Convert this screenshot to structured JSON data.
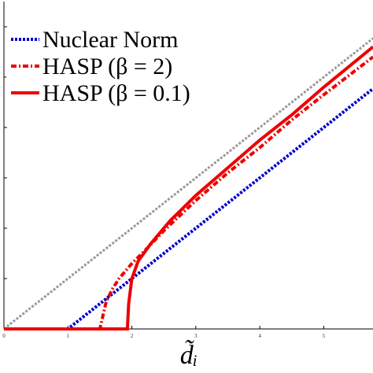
{
  "chart_data": {
    "type": "line",
    "xlabel": "d̃ᵢ",
    "xlim": [
      0,
      5.77
    ],
    "ylim": [
      0,
      6.5
    ],
    "xticks": [
      0,
      1,
      2,
      3,
      4,
      5
    ],
    "yticks": [
      0,
      1,
      2,
      3,
      4,
      5,
      6
    ],
    "legend": "upper left",
    "series": [
      {
        "name": null,
        "color": "#999999",
        "style": "dotted",
        "x": [
          0,
          5.77
        ],
        "values": [
          0,
          5.77
        ]
      },
      {
        "name": "Nuclear Norm",
        "color": "#0000cc",
        "style": "dotted",
        "x": [
          0,
          1,
          5.77
        ],
        "values": [
          0,
          0,
          4.77
        ]
      },
      {
        "name": "HASP (β = 2)",
        "color": "#ee0000",
        "style": "dashdot",
        "x": [
          0,
          1.5,
          1.6,
          1.7,
          1.8,
          2.0,
          2.2,
          2.5,
          3,
          3.5,
          4,
          4.5,
          5,
          5.77
        ],
        "values": [
          0,
          0,
          0.55,
          0.8,
          1.0,
          1.3,
          1.55,
          1.95,
          2.55,
          3.1,
          3.6,
          4.15,
          4.65,
          5.4
        ]
      },
      {
        "name": "HASP (β = 0.1)",
        "color": "#ee0000",
        "style": "solid",
        "x": [
          0,
          1.93,
          1.95,
          2.0,
          2.1,
          2.3,
          2.6,
          3,
          3.5,
          4,
          4.5,
          5,
          5.77
        ],
        "values": [
          0,
          0,
          0.5,
          1.0,
          1.35,
          1.7,
          2.15,
          2.65,
          3.2,
          3.75,
          4.25,
          4.8,
          5.6
        ]
      }
    ]
  }
}
